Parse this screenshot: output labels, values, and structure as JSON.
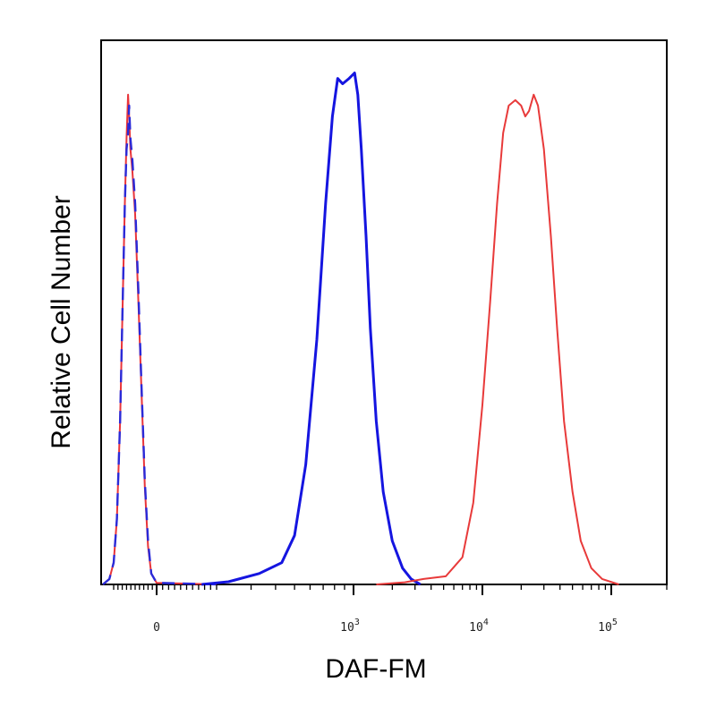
{
  "chart_data": {
    "type": "line",
    "xlabel": "DAF-FM",
    "ylabel": "Relative Cell Number",
    "x_scale": "biexponential",
    "xlim": [
      -250,
      200000
    ],
    "ylim": [
      0,
      100
    ],
    "grid": false,
    "legend": "none",
    "x_ticks": [
      {
        "value": 0,
        "label": "0"
      },
      {
        "value": 1000,
        "label": "10",
        "exponent": "3"
      },
      {
        "value": 10000,
        "label": "10",
        "exponent": "4"
      },
      {
        "value": 100000,
        "label": "10",
        "exponent": "5"
      }
    ],
    "series": [
      {
        "color": "#e8353a",
        "dash": "solid",
        "points": [
          [
            -250,
            0
          ],
          [
            -220,
            1
          ],
          [
            -200,
            4
          ],
          [
            -185,
            12
          ],
          [
            -170,
            30
          ],
          [
            -158,
            52
          ],
          [
            -148,
            70
          ],
          [
            -140,
            82
          ],
          [
            -133,
            90
          ],
          [
            -128,
            86
          ],
          [
            -122,
            80
          ],
          [
            -113,
            76
          ],
          [
            -100,
            68
          ],
          [
            -85,
            52
          ],
          [
            -70,
            35
          ],
          [
            -55,
            18
          ],
          [
            -40,
            7
          ],
          [
            -25,
            2
          ],
          [
            0,
            0.3
          ],
          [
            200,
            0
          ]
        ]
      },
      {
        "color": "#2a2ad8",
        "dash": "dashed",
        "points": [
          [
            -250,
            0
          ],
          [
            -220,
            1
          ],
          [
            -200,
            4
          ],
          [
            -185,
            12
          ],
          [
            -170,
            30
          ],
          [
            -158,
            52
          ],
          [
            -148,
            70
          ],
          [
            -140,
            80
          ],
          [
            -133,
            83
          ],
          [
            -128,
            88
          ],
          [
            -122,
            82
          ],
          [
            -113,
            78
          ],
          [
            -100,
            70
          ],
          [
            -85,
            54
          ],
          [
            -70,
            36
          ],
          [
            -55,
            19
          ],
          [
            -40,
            8
          ],
          [
            -25,
            2
          ],
          [
            0,
            0.3
          ],
          [
            200,
            0
          ]
        ]
      },
      {
        "color": "#1515e0",
        "dash": "solid",
        "points": [
          [
            150,
            0
          ],
          [
            230,
            0.5
          ],
          [
            330,
            2
          ],
          [
            430,
            4
          ],
          [
            500,
            9
          ],
          [
            570,
            22
          ],
          [
            650,
            45
          ],
          [
            720,
            70
          ],
          [
            780,
            86
          ],
          [
            830,
            93
          ],
          [
            880,
            92
          ],
          [
            950,
            93
          ],
          [
            1020,
            94
          ],
          [
            1080,
            90
          ],
          [
            1150,
            80
          ],
          [
            1250,
            64
          ],
          [
            1350,
            47
          ],
          [
            1500,
            30
          ],
          [
            1700,
            17
          ],
          [
            2000,
            8
          ],
          [
            2400,
            3
          ],
          [
            2800,
            1
          ],
          [
            3300,
            0
          ]
        ]
      },
      {
        "color": "#e83a3a",
        "dash": "solid",
        "points": [
          [
            1500,
            0
          ],
          [
            2500,
            0.4
          ],
          [
            3500,
            1
          ],
          [
            5200,
            1.5
          ],
          [
            7000,
            5
          ],
          [
            8500,
            15
          ],
          [
            10000,
            33
          ],
          [
            11500,
            52
          ],
          [
            13000,
            70
          ],
          [
            14500,
            83
          ],
          [
            16000,
            88
          ],
          [
            18000,
            89
          ],
          [
            20000,
            88
          ],
          [
            21500,
            86
          ],
          [
            23000,
            87
          ],
          [
            25000,
            90
          ],
          [
            27000,
            88
          ],
          [
            30000,
            80
          ],
          [
            34000,
            64
          ],
          [
            38000,
            47
          ],
          [
            43000,
            30
          ],
          [
            50000,
            17
          ],
          [
            58000,
            8
          ],
          [
            70000,
            3
          ],
          [
            85000,
            1
          ],
          [
            110000,
            0
          ]
        ]
      }
    ]
  }
}
